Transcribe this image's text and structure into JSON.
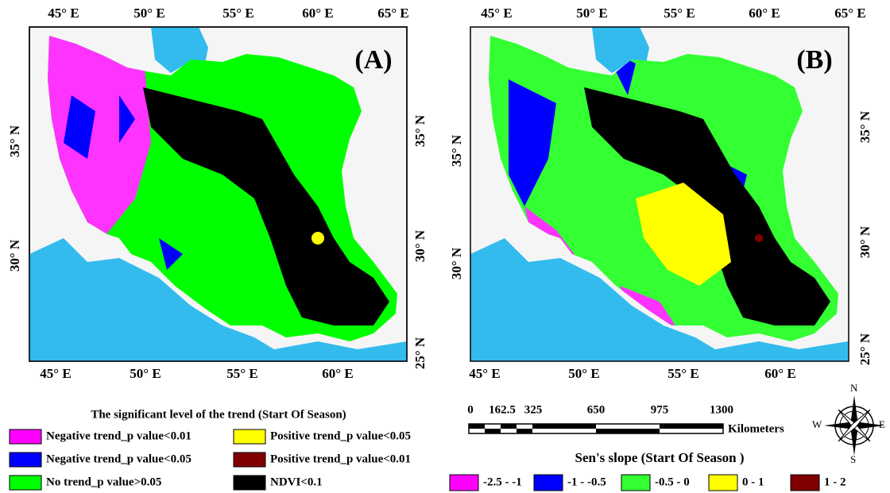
{
  "panel_a": {
    "label": "(A)",
    "top_labels": [
      "45° E",
      "50° E",
      "55° E",
      "60° E",
      "65° E"
    ],
    "bottom_labels": [
      "45° E",
      "50° E",
      "55° E",
      "60° E"
    ],
    "left_labels": [
      "35° N",
      "30° N"
    ],
    "right_labels": [
      "35° N",
      "30° N",
      "25° N"
    ],
    "legend_title": "The significant level of the trend (Start Of  Season)",
    "legend": [
      {
        "label": "Negative trend_p value<0.01",
        "color": "#ff00ff"
      },
      {
        "label": "Negative trend_p value<0.05",
        "color": "#0000ff"
      },
      {
        "label": "No trend_p value>0.05",
        "color": "#00ff00"
      },
      {
        "label": "Positive trend_p value<0.05",
        "color": "#ffff00"
      },
      {
        "label": "Positive trend_p value<0.01",
        "color": "#800000"
      },
      {
        "label": "NDVI<0.1",
        "color": "#000000"
      }
    ]
  },
  "panel_b": {
    "label": "(B)",
    "top_labels": [
      "45° E",
      "50° E",
      "55° E",
      "60° E",
      "65° E"
    ],
    "bottom_labels": [
      "45° E",
      "50° E",
      "55° E",
      "60° E"
    ],
    "left_labels": [
      "35° N",
      "30° N"
    ],
    "right_labels": [
      "35° N",
      "30° N",
      "25° N"
    ],
    "scale_bar": {
      "ticks": [
        "0",
        "162.5",
        "325",
        "650",
        "975",
        "1300"
      ],
      "unit": "Kilometers"
    },
    "compass": [
      "N",
      "W",
      "E",
      "S"
    ],
    "legend_title": "Sen's slope (Start Of Season )",
    "legend": [
      {
        "label": "-2.5 - -1",
        "color": "#ff00ff"
      },
      {
        "label": "-1 - -0.5",
        "color": "#0000ff"
      },
      {
        "label": "-0.5 - 0",
        "color": "#33ff33"
      },
      {
        "label": "0 - 1",
        "color": "#ffff00"
      },
      {
        "label": "1 - 2",
        "color": "#800000"
      }
    ]
  }
}
